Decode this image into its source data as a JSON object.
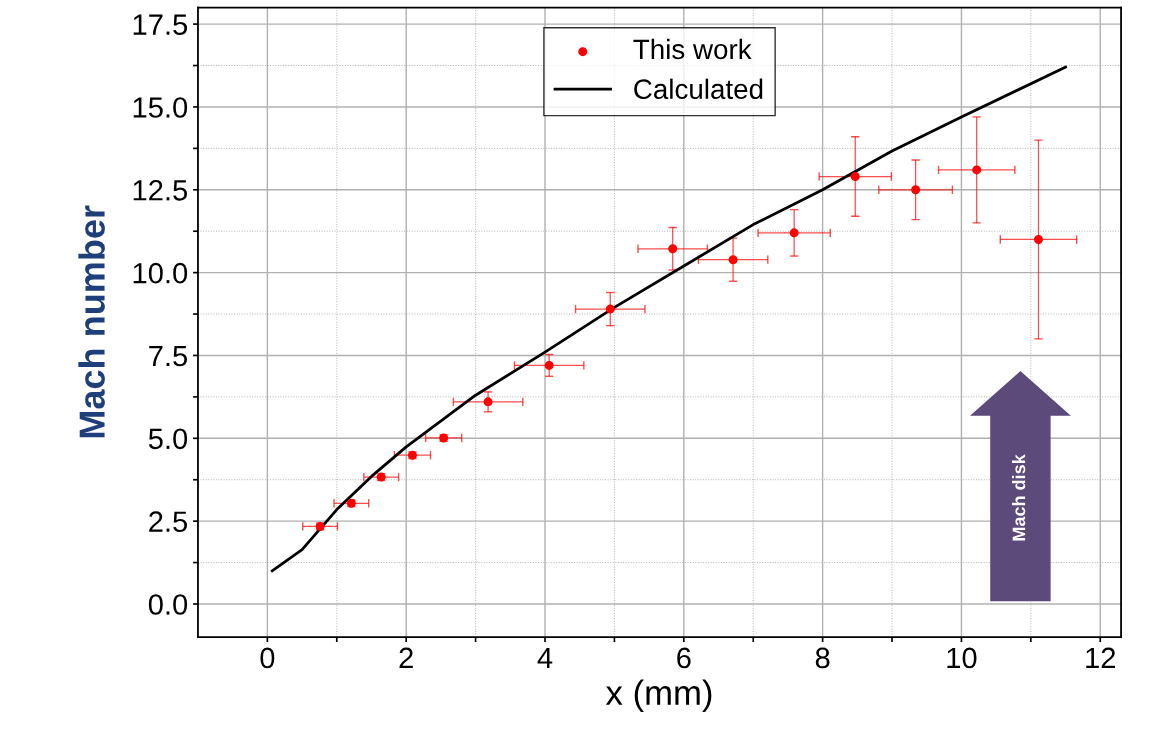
{
  "chart_data": {
    "type": "scatter",
    "xlabel": "x (mm)",
    "ylabel": "Mach number",
    "xlim": [
      -1,
      12.3
    ],
    "ylim": [
      -1,
      18
    ],
    "xticks": [
      0,
      {
        "value": 1,
        "label": null
      },
      2,
      {
        "value": 3,
        "label": null
      },
      4,
      {
        "value": 5,
        "label": null
      },
      6,
      {
        "value": 7,
        "label": null
      },
      8,
      {
        "value": 9,
        "label": null
      },
      10,
      {
        "value": 11,
        "label": null
      },
      12
    ],
    "yticks": [
      "0.0",
      {
        "value": 1.25,
        "label": null
      },
      {
        "value": 2.5,
        "label": "2.5"
      },
      {
        "value": 3.75,
        "label": null
      },
      {
        "value": 5,
        "label": "5.0"
      },
      {
        "value": 6.25,
        "label": null
      },
      {
        "value": 7.5,
        "label": "7.5"
      },
      {
        "value": 8.75,
        "label": null
      },
      {
        "value": 10,
        "label": "10.0"
      },
      {
        "value": 11.25,
        "label": null
      },
      {
        "value": 12.5,
        "label": "12.5"
      },
      {
        "value": 13.75,
        "label": null
      },
      {
        "value": 15,
        "label": "15.0"
      },
      {
        "value": 16.25,
        "label": null
      },
      {
        "value": 17.5,
        "label": "17.5"
      }
    ],
    "grid": true,
    "legend": "top",
    "annotations": [
      "Mach disk"
    ],
    "series": [
      {
        "name": "This work",
        "color": "#ff0000",
        "marker": "circle",
        "x": [
          0.76,
          1.21,
          1.64,
          2.09,
          2.54,
          3.18,
          4.06,
          4.94,
          5.84,
          6.71,
          7.59,
          8.47,
          9.34,
          10.22,
          11.11
        ],
        "values": [
          2.34,
          3.04,
          3.83,
          4.49,
          5.01,
          6.1,
          7.2,
          8.9,
          10.72,
          10.39,
          11.2,
          12.9,
          12.5,
          13.1,
          11.0
        ],
        "xerrors": [
          0.25,
          0.25,
          0.25,
          0.26,
          0.26,
          0.5,
          0.5,
          0.5,
          0.5,
          0.5,
          0.52,
          0.52,
          0.53,
          0.55,
          0.55
        ],
        "errors": [
          0.1,
          0.1,
          0.1,
          0.1,
          0.1,
          0.3,
          0.33,
          0.5,
          0.64,
          0.65,
          0.7,
          1.2,
          0.9,
          [
            11.5,
            14.7
          ],
          [
            8.0,
            14.0
          ]
        ]
      },
      {
        "name": "Calculated",
        "type": "line",
        "color": "#000000",
        "marker": "none",
        "line_style": "solid",
        "x": [
          0.07,
          0.5,
          1,
          1.5,
          2,
          3,
          4,
          5,
          6,
          7,
          8,
          9,
          10,
          11.5
        ],
        "values": [
          1.0,
          1.64,
          2.85,
          3.85,
          4.74,
          6.3,
          7.6,
          8.95,
          10.2,
          11.45,
          12.5,
          13.67,
          14.7,
          16.2
        ]
      }
    ]
  }
}
